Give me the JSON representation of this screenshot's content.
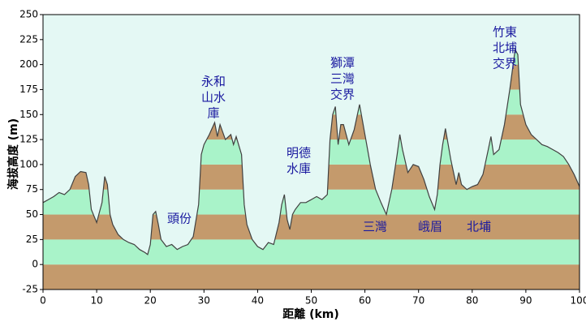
{
  "chart_data": {
    "type": "area",
    "x_label": "距離 (km)",
    "y_label": "海拔高度 (m)",
    "xlim": [
      0,
      100
    ],
    "xticks": [
      0,
      10,
      20,
      30,
      40,
      50,
      60,
      70,
      80,
      90,
      100
    ],
    "ylim": [
      -25,
      250
    ],
    "yticks": [
      -25,
      0,
      25,
      50,
      75,
      100,
      125,
      150,
      175,
      200,
      225,
      250
    ],
    "band_colors": [
      "#c49a6c",
      "#a9f3c9"
    ],
    "background": "#e4f8f4",
    "line_color": "#404040",
    "x": [
      0,
      1,
      2,
      3,
      4,
      5,
      6,
      7,
      8,
      8.5,
      9,
      10,
      11,
      11.5,
      12,
      12.5,
      13,
      14,
      15,
      16,
      17,
      18,
      19,
      19.5,
      20,
      20.5,
      21,
      21.5,
      22,
      23,
      24,
      25,
      26,
      27,
      28,
      29,
      29.5,
      30,
      31,
      32,
      32.5,
      33,
      34,
      35,
      35.5,
      36,
      37,
      37.5,
      38,
      39,
      40,
      41,
      42,
      43,
      44,
      44.5,
      45,
      45.5,
      46,
      46.5,
      47,
      48,
      49,
      50,
      51,
      52,
      53,
      53.5,
      54,
      54.5,
      55,
      55.5,
      56,
      57,
      58,
      59,
      60,
      61,
      62,
      63,
      64,
      65,
      66,
      66.5,
      67,
      68,
      69,
      70,
      71,
      72,
      73,
      73.5,
      74,
      74.5,
      75,
      76,
      77,
      77.5,
      78,
      79,
      80,
      81,
      82,
      83,
      83.5,
      84,
      85,
      86,
      87,
      88,
      88.5,
      89,
      90,
      91,
      92,
      93,
      94,
      95,
      96,
      97,
      98,
      99,
      100
    ],
    "series": [
      {
        "values": [
          62,
          65,
          68,
          72,
          70,
          75,
          88,
          93,
          92,
          80,
          55,
          42,
          62,
          88,
          80,
          50,
          40,
          30,
          25,
          22,
          20,
          15,
          12,
          10,
          20,
          50,
          53,
          40,
          25,
          18,
          20,
          15,
          18,
          20,
          28,
          60,
          110,
          120,
          130,
          142,
          128,
          140,
          125,
          130,
          120,
          128,
          110,
          60,
          40,
          25,
          18,
          15,
          22,
          20,
          42,
          60,
          70,
          45,
          35,
          50,
          55,
          62,
          62,
          65,
          68,
          65,
          70,
          125,
          150,
          158,
          120,
          140,
          140,
          120,
          135,
          160,
          130,
          100,
          75,
          62,
          50,
          75,
          110,
          130,
          115,
          92,
          100,
          98,
          85,
          68,
          55,
          70,
          100,
          120,
          136,
          105,
          80,
          92,
          80,
          75,
          78,
          80,
          90,
          115,
          128,
          110,
          115,
          140,
          175,
          215,
          210,
          160,
          140,
          130,
          125,
          120,
          118,
          115,
          112,
          108,
          100,
          90,
          78
        ]
      }
    ],
    "annotations": [
      [
        "永和",
        "山水",
        "庫"
      ],
      [
        "頭份"
      ],
      [
        "明德",
        "水庫"
      ],
      [
        "獅潭",
        "三灣",
        "交界"
      ],
      [
        "三灣"
      ],
      [
        "峨眉"
      ],
      [
        "北埔"
      ],
      [
        "竹東",
        "北埔",
        "交界"
      ]
    ]
  }
}
